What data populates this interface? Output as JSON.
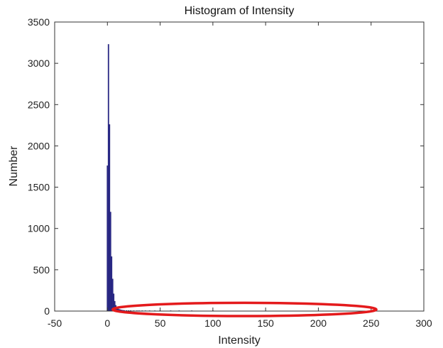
{
  "chart_data": {
    "type": "bar",
    "title": "Histogram of Intensity",
    "xlabel": "Intensity",
    "ylabel": "Number",
    "xlim": [
      -50,
      300
    ],
    "ylim": [
      0,
      3500
    ],
    "xticks": [
      -50,
      0,
      50,
      100,
      150,
      200,
      250,
      300
    ],
    "yticks": [
      0,
      500,
      1000,
      1500,
      2000,
      2500,
      3000,
      3500
    ],
    "grid": false,
    "bar_width": 1,
    "bar_color": "#2b2a8c",
    "x": [
      0,
      1,
      2,
      3,
      4,
      5,
      6,
      7,
      8,
      9,
      10,
      11,
      12,
      13,
      14,
      15,
      16,
      18,
      20,
      22,
      25,
      28,
      30,
      33,
      36,
      40,
      45,
      50,
      60,
      68,
      80,
      100
    ],
    "values": [
      1760,
      3230,
      2260,
      1200,
      660,
      390,
      210,
      120,
      70,
      45,
      30,
      22,
      18,
      15,
      12,
      10,
      9,
      8,
      7,
      6,
      5,
      5,
      4,
      4,
      3,
      3,
      2,
      2,
      2,
      5,
      1,
      1
    ],
    "annotation": {
      "shape": "ellipse",
      "color": "#e41a1c",
      "center_x": 130,
      "center_y": 20,
      "radius_x": 125,
      "radius_y": 80
    }
  }
}
